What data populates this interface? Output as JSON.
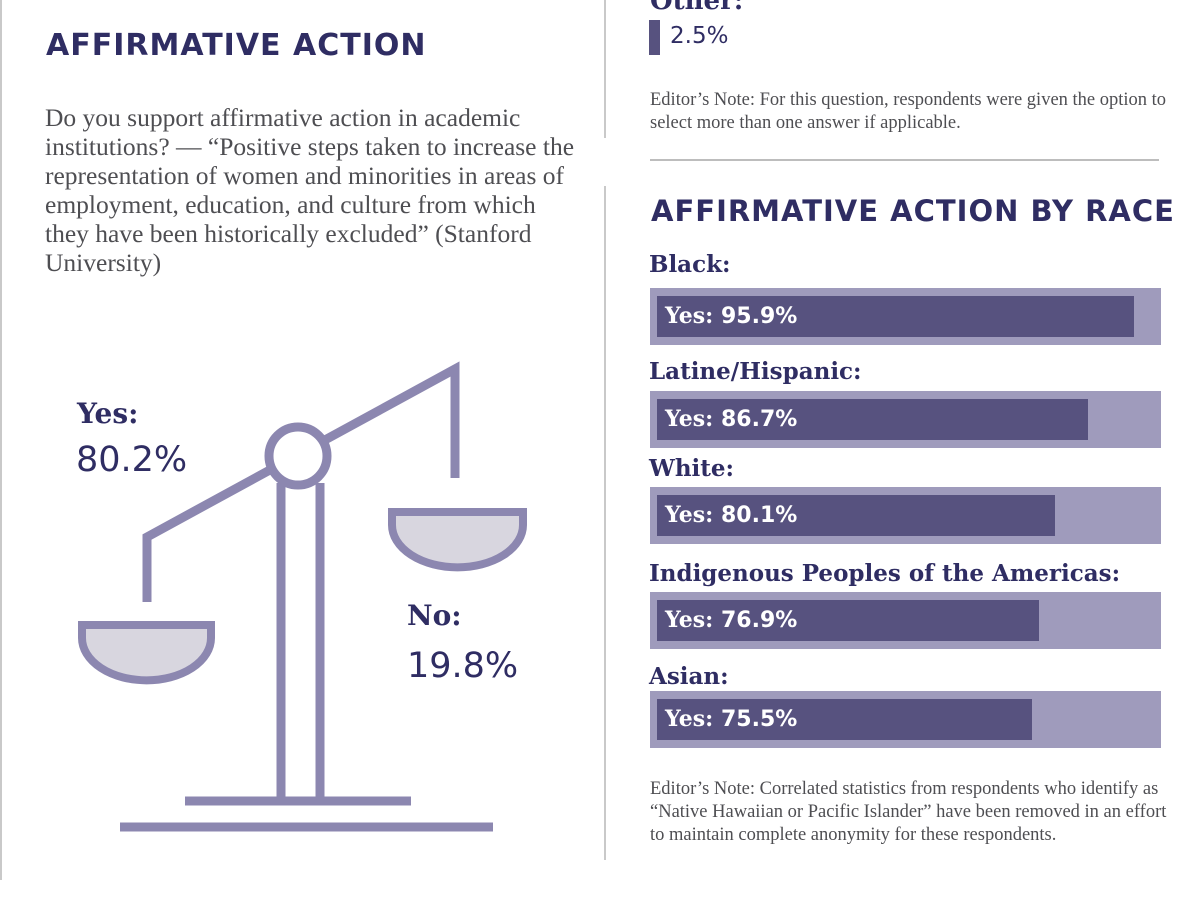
{
  "left_panel": {
    "heading": "AFFIRMATIVE ACTION",
    "question": "Do you support affirmative action in academic institutions? — “Positive steps taken to increase the representation of women and minorities in areas of employment, education, and culture from which they have been historically excluded” (Stanford University)"
  },
  "other_answer": {
    "label": "Other:",
    "value": "2.5%"
  },
  "note_1": "Editor’s Note: For this question, respondents were given the option to select more than one answer if applicable.",
  "race_section": {
    "heading": "AFFIRMATIVE ACTION BY RACE"
  },
  "note_2": "Editor’s Note: Correlated statistics from respondents who identify as “Native Hawaiian or Pacific Islander” have been removed in an effort to maintain complete anonymity for these respondents.",
  "colors": {
    "navy": "#2f2d63",
    "bar_fill": "#57527f",
    "bar_track": "#9f9bbc",
    "scale": "#8c87b0",
    "pan": "#d8d6df"
  },
  "chart_data": [
    {
      "type": "pie",
      "categories": [
        "Yes:",
        "No:"
      ],
      "values": [
        80.2,
        19.8
      ],
      "value_labels": [
        "80.2%",
        "19.8%"
      ],
      "title": "AFFIRMATIVE ACTION"
    },
    {
      "type": "bar",
      "orientation": "horizontal",
      "title": "AFFIRMATIVE ACTION BY RACE",
      "categories": [
        "Black:",
        "Latine/Hispanic:",
        "White:",
        "Indigenous Peoples of the Americas:",
        "Asian:"
      ],
      "bar_prefix": "Yes:",
      "values": [
        95.9,
        86.7,
        80.1,
        76.9,
        75.5
      ],
      "value_labels": [
        "95.9%",
        "86.7%",
        "80.1%",
        "76.9%",
        "75.5%"
      ],
      "xlim": [
        0,
        100
      ],
      "grid": false
    }
  ]
}
